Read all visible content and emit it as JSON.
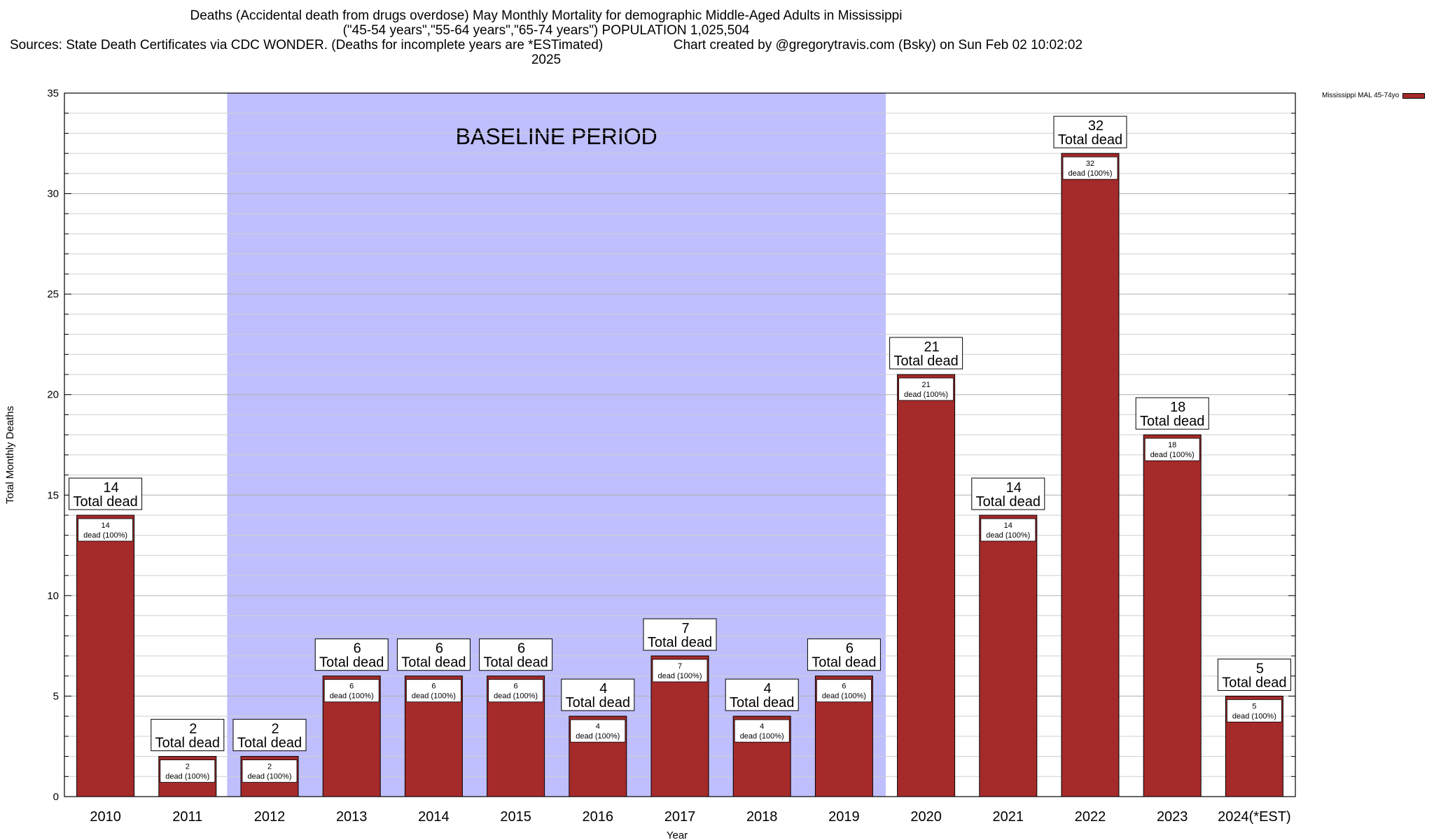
{
  "title_line1": "Deaths (Accidental death from drugs overdose) May Monthly Mortality for demographic Middle-Aged Adults in Mississippi",
  "title_line2": "(\"45-54 years\",\"55-64 years\",\"65-74 years\") POPULATION 1,025,504",
  "title_line3a": "Sources: State Death Certificates via CDC WONDER. (Deaths for incomplete years are *ESTimated)",
  "title_line3b": "Chart created by @gregorytravis.com (Bsky) on Sun Feb 02 10:02:02 2025",
  "legend_label": "Mississippi MAL 45-74yo",
  "colors": {
    "bar": "#a52a2a",
    "baseline": "#bfbffd"
  },
  "chart_data": {
    "type": "bar",
    "xlabel": "Year",
    "ylabel": "Total Monthly Deaths",
    "ylim": [
      0,
      35
    ],
    "yticks": [
      0,
      5,
      10,
      15,
      20,
      25,
      30,
      35
    ],
    "grid": true,
    "legend": "top-right",
    "baseline_label": "BASELINE PERIOD",
    "baseline_range": [
      "2012",
      "2019"
    ],
    "box_label": "Total dead",
    "inner_label_suffix": "dead (100%)",
    "categories": [
      "2010",
      "2011",
      "2012",
      "2013",
      "2014",
      "2015",
      "2016",
      "2017",
      "2018",
      "2019",
      "2020",
      "2021",
      "2022",
      "2023",
      "2024(*EST)"
    ],
    "series": [
      {
        "name": "Mississippi MAL 45-74yo",
        "values": [
          14,
          2,
          2,
          6,
          6,
          6,
          4,
          7,
          4,
          6,
          21,
          14,
          32,
          18,
          5
        ]
      }
    ]
  }
}
